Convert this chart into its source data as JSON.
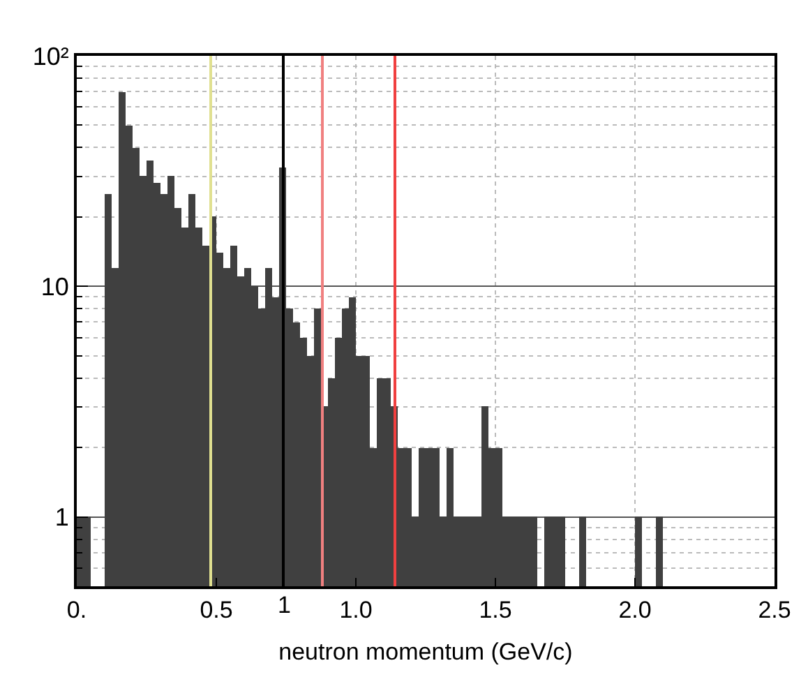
{
  "chart_data": {
    "type": "histogram",
    "xlabel": "neutron momentum (GeV/c)",
    "bins": [
      0,
      0.025,
      0.05,
      0.075,
      0.1,
      0.125,
      0.15,
      0.175,
      0.2,
      0.225,
      0.25,
      0.275,
      0.3,
      0.325,
      0.35,
      0.375,
      0.4,
      0.425,
      0.45,
      0.475,
      0.5,
      0.525,
      0.55,
      0.575,
      0.6,
      0.625,
      0.65,
      0.675,
      0.7,
      0.725,
      0.75,
      0.775,
      0.8,
      0.825,
      0.85,
      0.875,
      0.9,
      0.925,
      0.95,
      0.975,
      1.0,
      1.025,
      1.05,
      1.075,
      1.1,
      1.125,
      1.15,
      1.175,
      1.2,
      1.225,
      1.25,
      1.275,
      1.3,
      1.325,
      1.35,
      1.375,
      1.4,
      1.425,
      1.45,
      1.475,
      1.5,
      1.525,
      1.55,
      1.575,
      1.6,
      1.625,
      1.65,
      1.675,
      1.7,
      1.725,
      1.75,
      1.775,
      1.8,
      1.825,
      1.85,
      1.875,
      1.9,
      1.925,
      1.95,
      1.975,
      2.0,
      2.025,
      2.05,
      2.075,
      2.1,
      2.125,
      2.15,
      2.175,
      2.2,
      2.225,
      2.25,
      2.275,
      2.3,
      2.325,
      2.35,
      2.375,
      2.4,
      2.425,
      2.45,
      2.475,
      2.5
    ],
    "values": [
      1,
      1,
      null,
      null,
      25,
      12,
      70,
      50,
      40,
      30,
      35,
      28,
      25,
      30,
      22,
      18,
      25,
      18,
      15,
      20,
      14,
      12,
      15,
      11,
      12,
      10,
      8,
      12,
      9,
      33,
      8,
      7,
      6,
      5,
      8,
      3,
      4,
      6,
      8,
      9,
      5,
      5,
      2,
      4,
      4,
      3,
      2,
      2,
      1,
      2,
      2,
      2,
      1,
      2,
      1,
      1,
      1,
      1,
      3,
      2,
      2,
      1,
      1,
      1,
      1,
      1,
      null,
      1,
      1,
      1,
      null,
      null,
      1,
      null,
      null,
      null,
      null,
      null,
      null,
      null,
      1,
      null,
      null,
      1,
      null,
      null,
      null,
      null,
      null,
      null,
      null,
      null,
      null,
      null,
      null,
      null,
      null,
      null,
      null,
      null
    ],
    "color": "#404040",
    "log": "y",
    "xlim": [
      0,
      2.5
    ],
    "ylim": [
      0.5,
      100
    ],
    "xticks": [
      {
        "value": 0,
        "label": "0."
      },
      {
        "value": 0.5,
        "label": "0.5"
      },
      {
        "value": 1.0,
        "label": "1.0"
      },
      {
        "value": 1.5,
        "label": "1.5"
      },
      {
        "value": 2.0,
        "label": "2.0"
      },
      {
        "value": 2.5,
        "label": "2.5"
      }
    ],
    "yticks": [
      1,
      10,
      {
        "value": 100,
        "label": "10²"
      }
    ],
    "grid": true,
    "ref_lines": [
      {
        "axis": "x",
        "value": 0.48,
        "color": "#e0e090"
      },
      {
        "axis": "x",
        "value": 0.74,
        "label": "1",
        "color": "#000000"
      },
      {
        "axis": "x",
        "value": 0.88,
        "color": "#f08080"
      },
      {
        "axis": "x",
        "value": 1.14,
        "color": "#f04040"
      }
    ]
  }
}
